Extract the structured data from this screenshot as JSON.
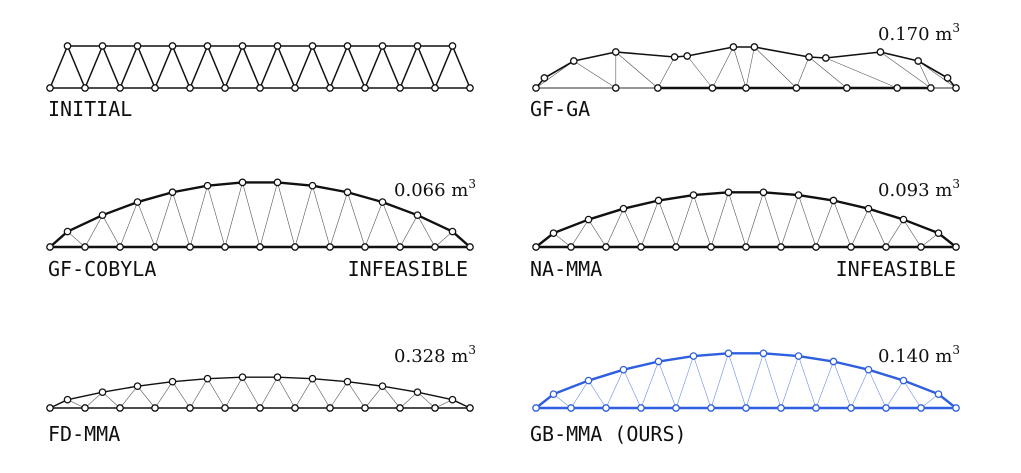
{
  "panels": [
    {
      "label": "INITIAL",
      "volume": "",
      "status": "",
      "shape": "initial",
      "color": "#111111"
    },
    {
      "label": "GF-GA",
      "volume": "0.170",
      "status": "",
      "shape": "ga",
      "color": "#111111"
    },
    {
      "label": "GF-COBYLA",
      "volume": "0.066",
      "status": "INFEASIBLE",
      "shape": "arch_tall",
      "color": "#111111"
    },
    {
      "label": "NA-MMA",
      "volume": "0.093",
      "status": "INFEASIBLE",
      "shape": "arch_mid",
      "color": "#111111"
    },
    {
      "label": "FD-MMA",
      "volume": "0.328",
      "status": "",
      "shape": "arch_flat",
      "color": "#111111"
    },
    {
      "label": "GB-MMA (OURS)",
      "volume": "0.140",
      "status": "",
      "shape": "arch_mid",
      "color": "#2f5fe0"
    }
  ],
  "volume_unit": "m",
  "volume_exponent": "3"
}
